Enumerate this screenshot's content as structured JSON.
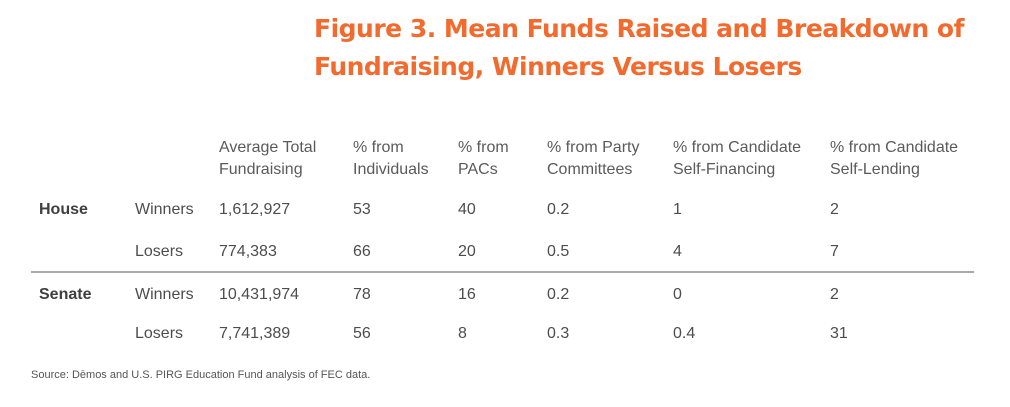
{
  "title": {
    "line1": "Figure 3. Mean Funds Raised and Breakdown of",
    "line2": "Fundraising, Winners Versus Losers"
  },
  "columns": [
    {
      "line1": "Average Total",
      "line2": "Fundraising"
    },
    {
      "line1": "% from",
      "line2": "Individuals"
    },
    {
      "line1": "% from",
      "line2": "PACs"
    },
    {
      "line1": "% from Party",
      "line2": "Committees"
    },
    {
      "line1": "% from Candidate",
      "line2": "Self-Financing"
    },
    {
      "line1": "% from Candidate",
      "line2": "Self-Lending"
    }
  ],
  "groups": [
    {
      "chamber": "House",
      "rows": [
        {
          "label": "Winners",
          "values": [
            "1,612,927",
            "53",
            "40",
            "0.2",
            "1",
            "2"
          ]
        },
        {
          "label": "Losers",
          "values": [
            "774,383",
            "66",
            "20",
            "0.5",
            "4",
            "7"
          ]
        }
      ]
    },
    {
      "chamber": "Senate",
      "rows": [
        {
          "label": "Winners",
          "values": [
            "10,431,974",
            "78",
            "16",
            "0.2",
            "0",
            "2"
          ]
        },
        {
          "label": "Losers",
          "values": [
            "7,741,389",
            "56",
            "8",
            "0.3",
            "0.4",
            "31"
          ]
        }
      ]
    }
  ],
  "source": "Source: Dēmos and U.S. PIRG Education Fund analysis of FEC data."
}
